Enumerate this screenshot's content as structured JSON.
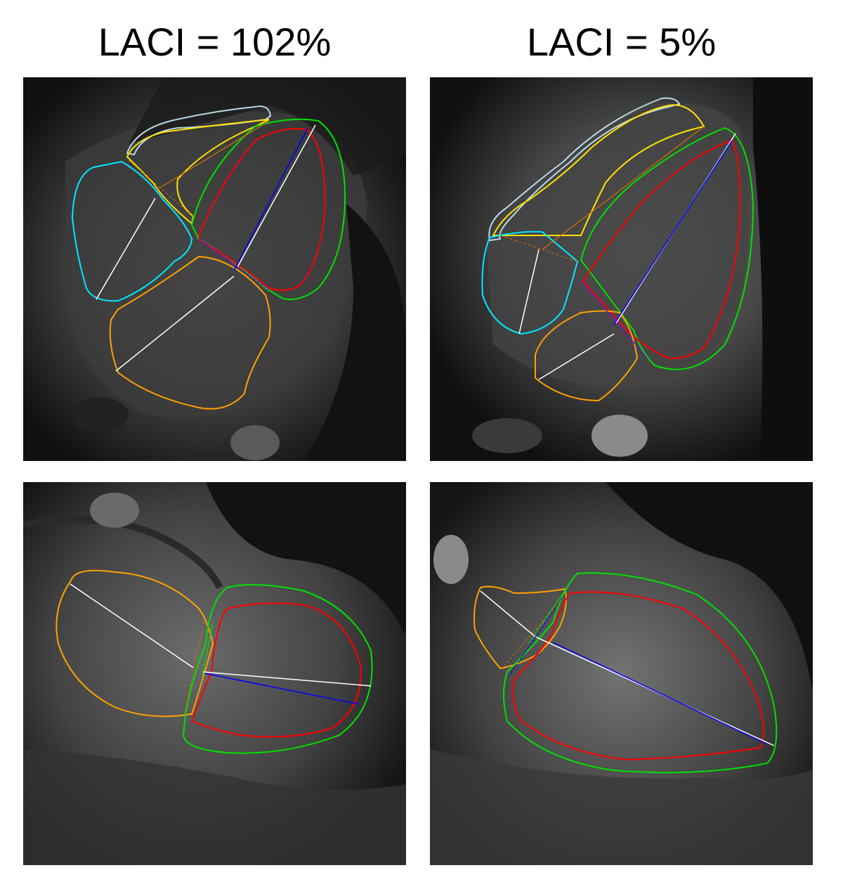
{
  "figure": {
    "columns": [
      {
        "title": "LACI = 102%"
      },
      {
        "title": "LACI = 5%"
      }
    ]
  },
  "colors": {
    "left_ventricle_endo": "#ff0000",
    "left_ventricle_epi": "#00e000",
    "left_atrium": "#ffa000",
    "right_atrium": "#00e8ff",
    "right_ventricle_endo": "#ffe000",
    "right_ventricle_epi": "#b8d8e8",
    "axis_line": "#ffffff",
    "lv_long_axis": "#0000ff",
    "annulus_line": "#8000ff",
    "ra_la_link": "#d07000"
  },
  "panels": [
    {
      "view": "four-chamber",
      "column": 0
    },
    {
      "view": "four-chamber",
      "column": 1
    },
    {
      "view": "two-chamber",
      "column": 0
    },
    {
      "view": "two-chamber",
      "column": 1
    }
  ]
}
